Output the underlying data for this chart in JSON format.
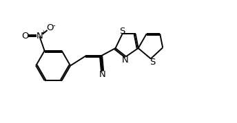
{
  "bg_color": "#ffffff",
  "line_color": "#000000",
  "line_width": 1.4,
  "font_size": 8.5,
  "figsize": [
    3.44,
    1.79
  ],
  "dpi": 100,
  "xlim": [
    -1.5,
    6.2
  ],
  "ylim": [
    -2.2,
    2.2
  ]
}
